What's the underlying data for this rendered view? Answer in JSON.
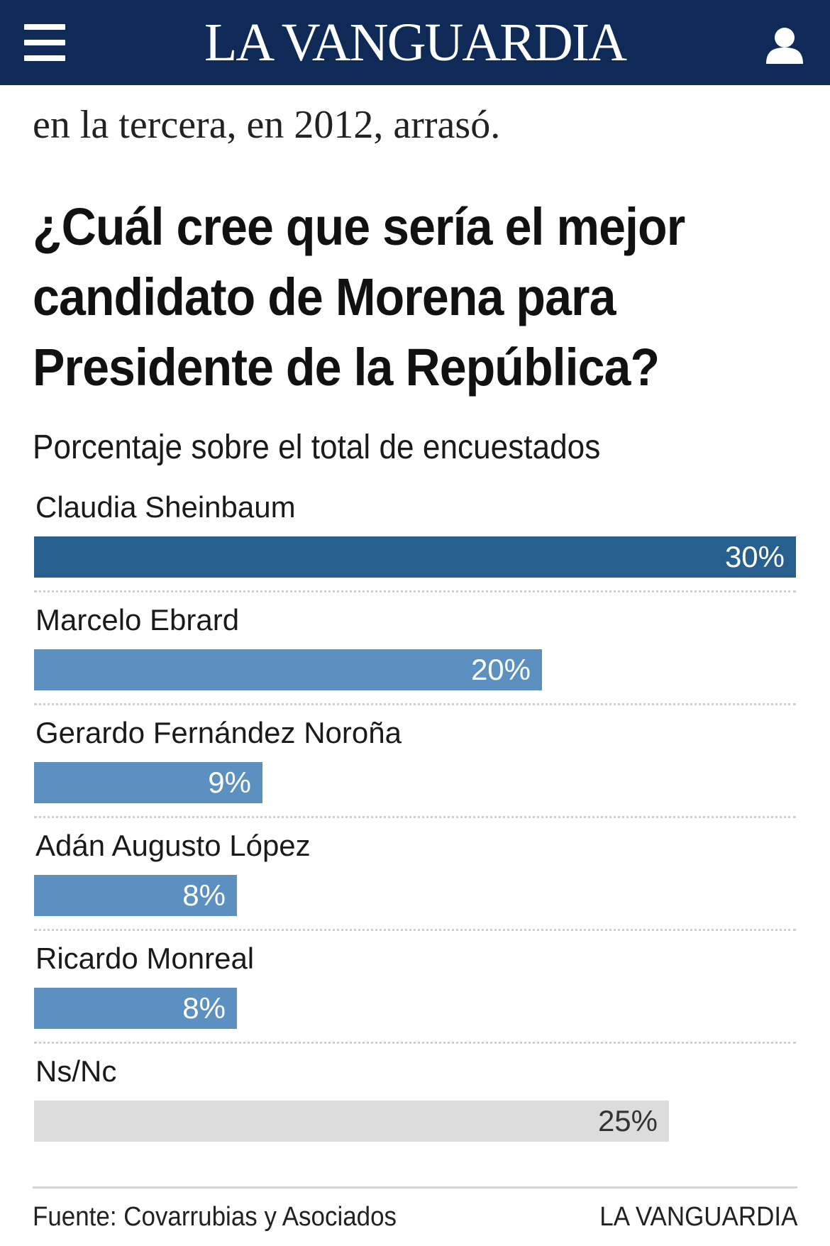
{
  "header": {
    "logo_text": "LA VANGUARDIA",
    "background_color": "#0f2a56",
    "menu_icon": "hamburger-menu-icon",
    "user_icon": "user-account-icon"
  },
  "article": {
    "text_fragment": "en la tercera, en 2012, arrasó."
  },
  "chart_data": {
    "type": "bar",
    "orientation": "horizontal",
    "title": "¿Cuál cree que sería el mejor candidato de Morena para Presidente de la República?",
    "subtitle": "Porcentaje sobre el total de encuestados",
    "unit": "%",
    "xlim": [
      0,
      30
    ],
    "grid": false,
    "categories": [
      "Claudia Sheinbaum",
      "Marcelo Ebrard",
      "Gerardo Fernández Noroña",
      "Adán Augusto López",
      "Ricardo Monreal",
      "Ns/Nc"
    ],
    "values": [
      30,
      20,
      9,
      8,
      8,
      25
    ],
    "value_labels": [
      "30%",
      "20%",
      "9%",
      "8%",
      "8%",
      "25%"
    ],
    "colors": [
      "#275f8e",
      "#5b90c1",
      "#5b90c1",
      "#5b90c1",
      "#5b90c1",
      "#dcdcdc"
    ]
  },
  "footer": {
    "source": "Fuente: Covarrubias y Asociados",
    "credit": "LA VANGUARDIA"
  }
}
